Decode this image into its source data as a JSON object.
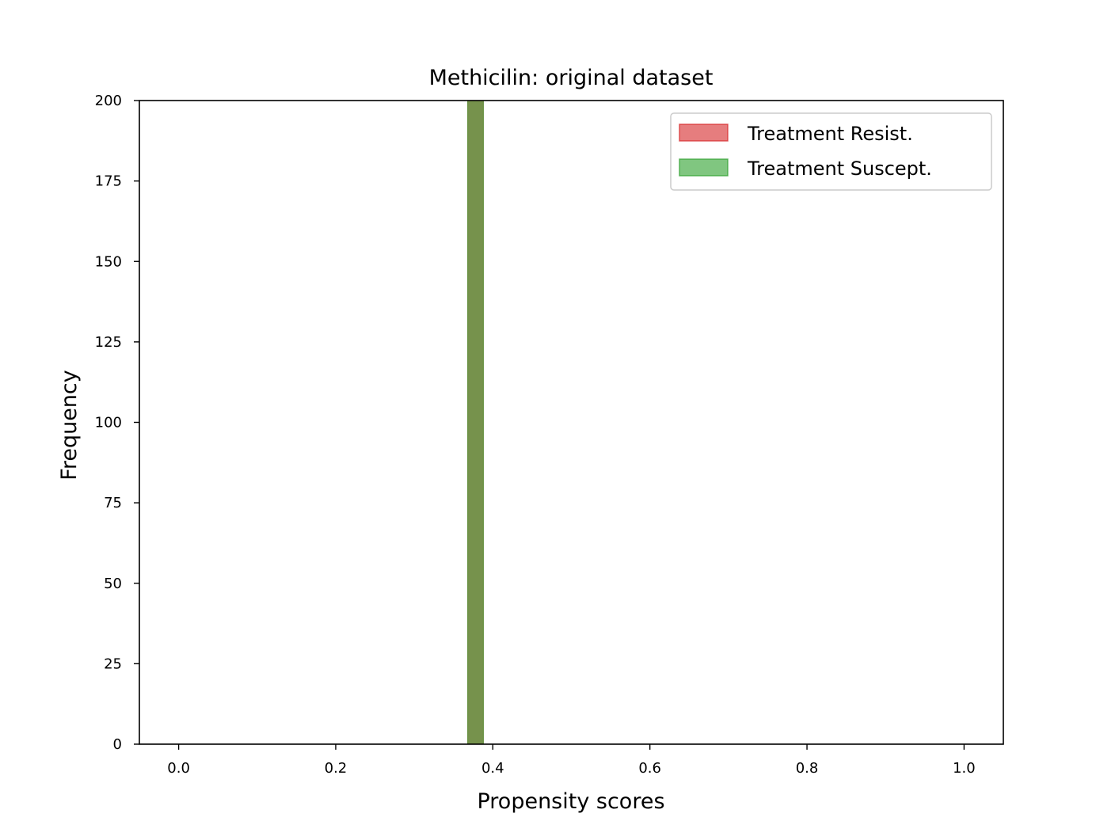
{
  "chart_data": {
    "type": "bar",
    "title": "Methicilin: original dataset",
    "xlabel": "Propensity scores",
    "ylabel": "Frequency",
    "xlim": [
      -0.05,
      1.05
    ],
    "ylim": [
      0,
      200
    ],
    "xticks": [
      "0.0",
      "0.2",
      "0.4",
      "0.6",
      "0.8",
      "1.0"
    ],
    "yticks": [
      "0",
      "25",
      "50",
      "75",
      "100",
      "125",
      "150",
      "175",
      "200"
    ],
    "grid": false,
    "legend_position": "top-right",
    "series": [
      {
        "name": "Treatment Resist.",
        "color": "#d62728",
        "bins": [
          {
            "x0": 0.368,
            "x1": 0.388,
            "count": 200
          }
        ]
      },
      {
        "name": "Treatment Suscept.",
        "color": "#2ca02c",
        "bins": [
          {
            "x0": 0.368,
            "x1": 0.388,
            "count": 200
          }
        ]
      }
    ]
  }
}
